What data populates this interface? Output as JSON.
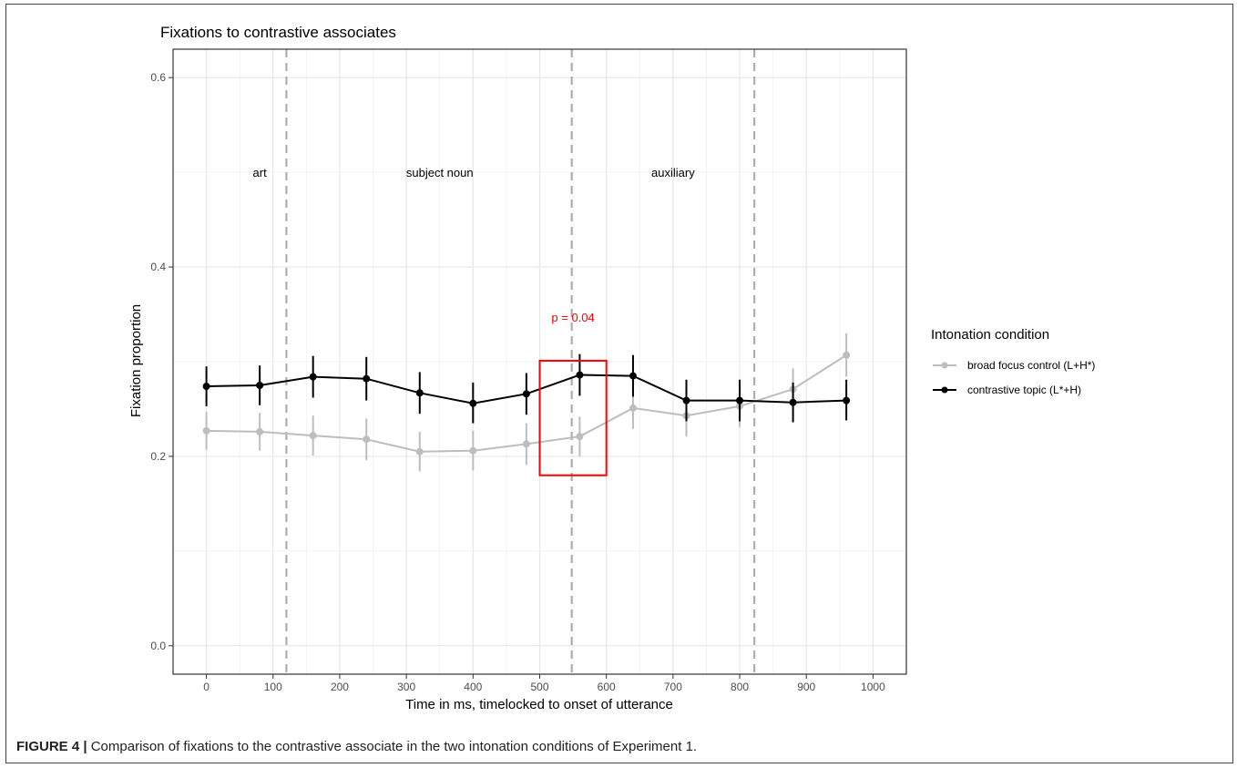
{
  "caption": {
    "label": "FIGURE 4 |",
    "text": " Comparison of fixations to the contrastive associate in the two intonation conditions of Experiment 1."
  },
  "chart_data": {
    "type": "line",
    "title": "Fixations to contrastive associates",
    "xlabel": "Time in ms, timelocked to onset of utterance",
    "ylabel": "Fixation proportion",
    "xlim": [
      -50,
      1050
    ],
    "ylim": [
      -0.03,
      0.63
    ],
    "x_ticks": [
      0,
      100,
      200,
      300,
      400,
      500,
      600,
      700,
      800,
      900,
      1000
    ],
    "y_ticks": [
      0.0,
      0.2,
      0.4,
      0.6
    ],
    "y_tick_labels": [
      "0.0",
      "0.2",
      "0.4",
      "0.6"
    ],
    "grid": true,
    "legend": {
      "title": "Intonation condition",
      "position": "right"
    },
    "x": [
      0,
      80,
      160,
      240,
      320,
      400,
      480,
      560,
      640,
      720,
      800,
      880,
      960
    ],
    "series": [
      {
        "name": "broad focus control (L+H*)",
        "color": "#bdbdbd",
        "values": [
          0.227,
          0.226,
          0.222,
          0.218,
          0.205,
          0.206,
          0.213,
          0.221,
          0.251,
          0.243,
          0.253,
          0.271,
          0.307
        ],
        "err_low": [
          0.207,
          0.206,
          0.201,
          0.196,
          0.184,
          0.185,
          0.191,
          0.2,
          0.229,
          0.221,
          0.231,
          0.249,
          0.284
        ],
        "err_high": [
          0.247,
          0.246,
          0.243,
          0.24,
          0.226,
          0.227,
          0.235,
          0.242,
          0.273,
          0.265,
          0.275,
          0.293,
          0.33
        ]
      },
      {
        "name": "contrastive topic (L*+H)",
        "color": "#000000",
        "values": [
          0.274,
          0.275,
          0.284,
          0.282,
          0.267,
          0.256,
          0.266,
          0.286,
          0.285,
          0.259,
          0.259,
          0.257,
          0.259
        ],
        "err_low": [
          0.253,
          0.254,
          0.262,
          0.259,
          0.245,
          0.235,
          0.244,
          0.264,
          0.263,
          0.237,
          0.237,
          0.236,
          0.238
        ],
        "err_high": [
          0.295,
          0.296,
          0.306,
          0.305,
          0.289,
          0.278,
          0.288,
          0.308,
          0.307,
          0.281,
          0.281,
          0.278,
          0.281
        ]
      }
    ],
    "vlines": [
      120,
      548,
      822
    ],
    "regions": [
      {
        "label": "art",
        "x": 80,
        "y": 0.5
      },
      {
        "label": "subject noun",
        "x": 350,
        "y": 0.5
      },
      {
        "label": "auxiliary",
        "x": 700,
        "y": 0.5
      }
    ],
    "annotation": {
      "text": "p = 0.04",
      "color": "#ff0000",
      "x": 550,
      "y": 0.347,
      "box": {
        "x0": 500,
        "x1": 600,
        "y0": 0.18,
        "y1": 0.301
      }
    }
  }
}
